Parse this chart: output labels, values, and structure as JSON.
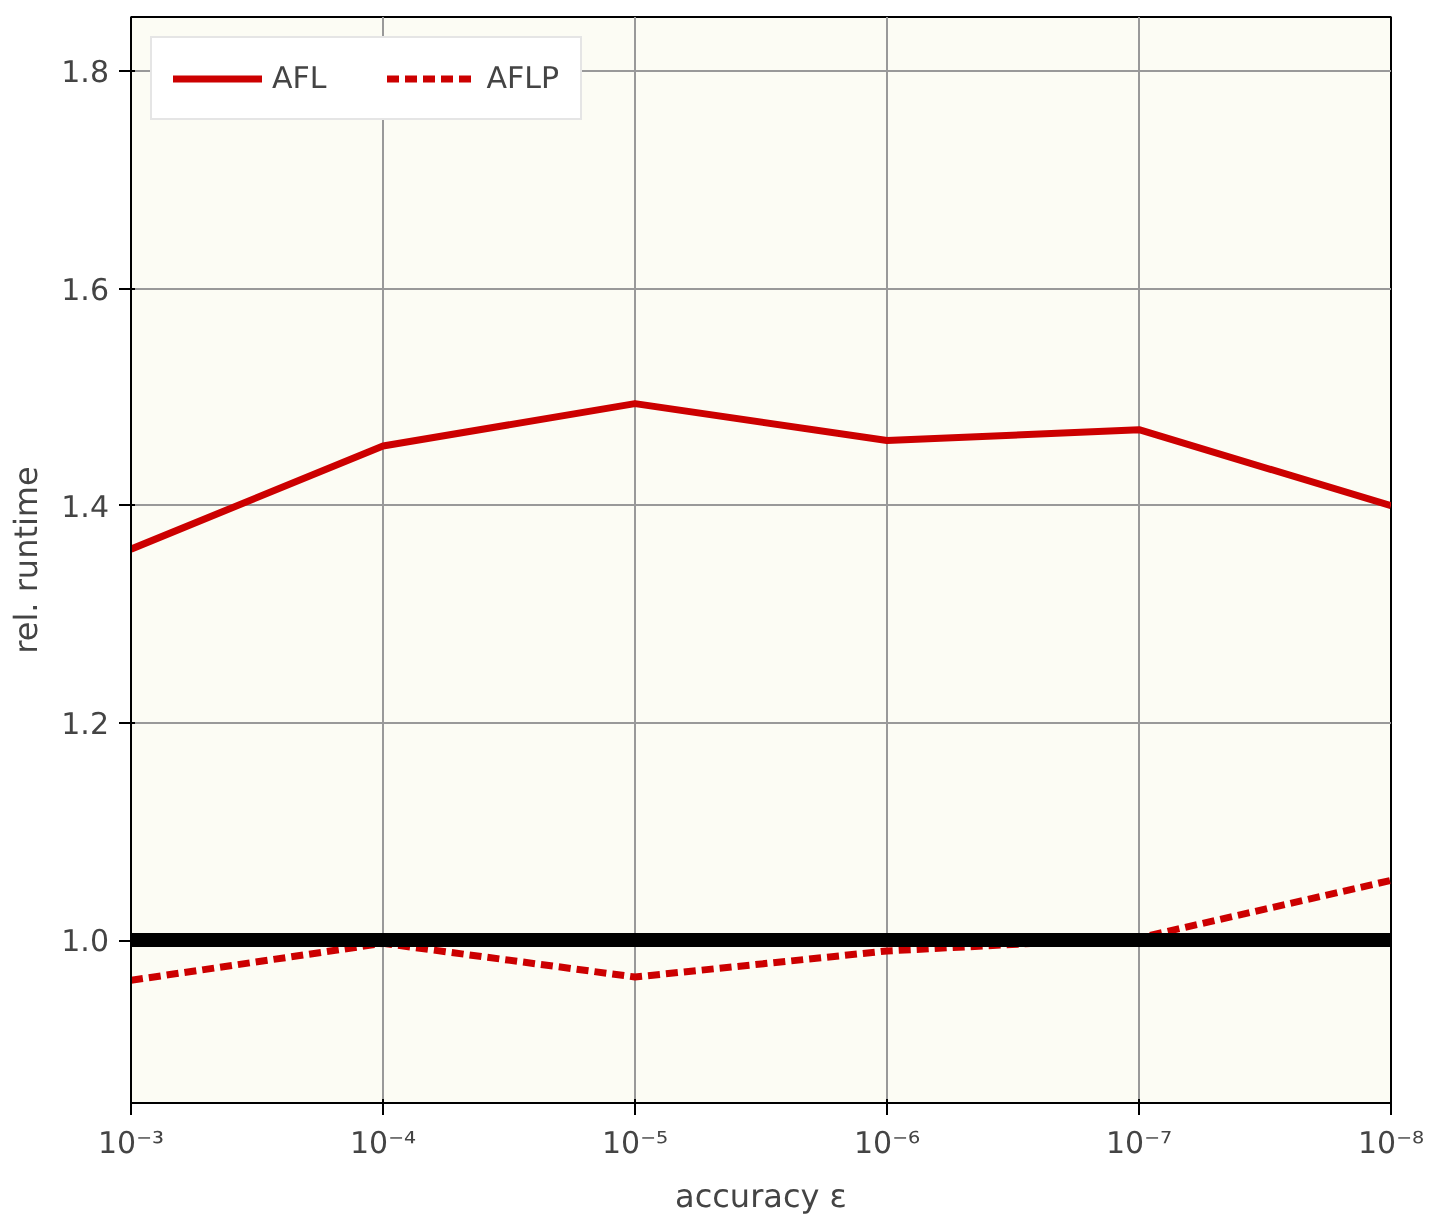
{
  "chart_data": {
    "type": "line",
    "xlabel": "accuracy ε",
    "ylabel": "rel. runtime",
    "x": [
      0.001,
      0.0001,
      1e-05,
      1e-06,
      1e-07,
      1e-08
    ],
    "series": [
      {
        "name": "AFL",
        "color": "#cc0000",
        "line_style": "solid",
        "values": [
          1.36,
          1.455,
          1.494,
          1.46,
          1.47,
          1.4
        ]
      },
      {
        "name": "AFLP",
        "color": "#cc0000",
        "line_style": "dashed",
        "values": [
          0.963,
          0.997,
          0.966,
          0.99,
          1.002,
          1.055
        ]
      }
    ],
    "log": "x",
    "xlim": [
      0.001,
      1e-08
    ],
    "xticks": [
      {
        "value": 0.001,
        "label": "10⁻³"
      },
      {
        "value": 0.0001,
        "label": "10⁻⁴"
      },
      {
        "value": 1e-05,
        "label": "10⁻⁵"
      },
      {
        "value": 1e-06,
        "label": "10⁻⁶"
      },
      {
        "value": 1e-07,
        "label": "10⁻⁷"
      },
      {
        "value": 1e-08,
        "label": "10⁻⁸"
      }
    ],
    "ylim": [
      0.85,
      1.85
    ],
    "yticks": [
      {
        "value": 1.0,
        "label": "1.0"
      },
      {
        "value": 1.2,
        "label": "1.2"
      },
      {
        "value": 1.4,
        "label": "1.4"
      },
      {
        "value": 1.6,
        "label": "1.6"
      },
      {
        "value": 1.8,
        "label": "1.8"
      }
    ],
    "ref_lines": [
      {
        "axis": "y",
        "value": 1.0,
        "color": "#000000"
      }
    ],
    "grid": true,
    "legend": "top left",
    "marker": "none"
  }
}
